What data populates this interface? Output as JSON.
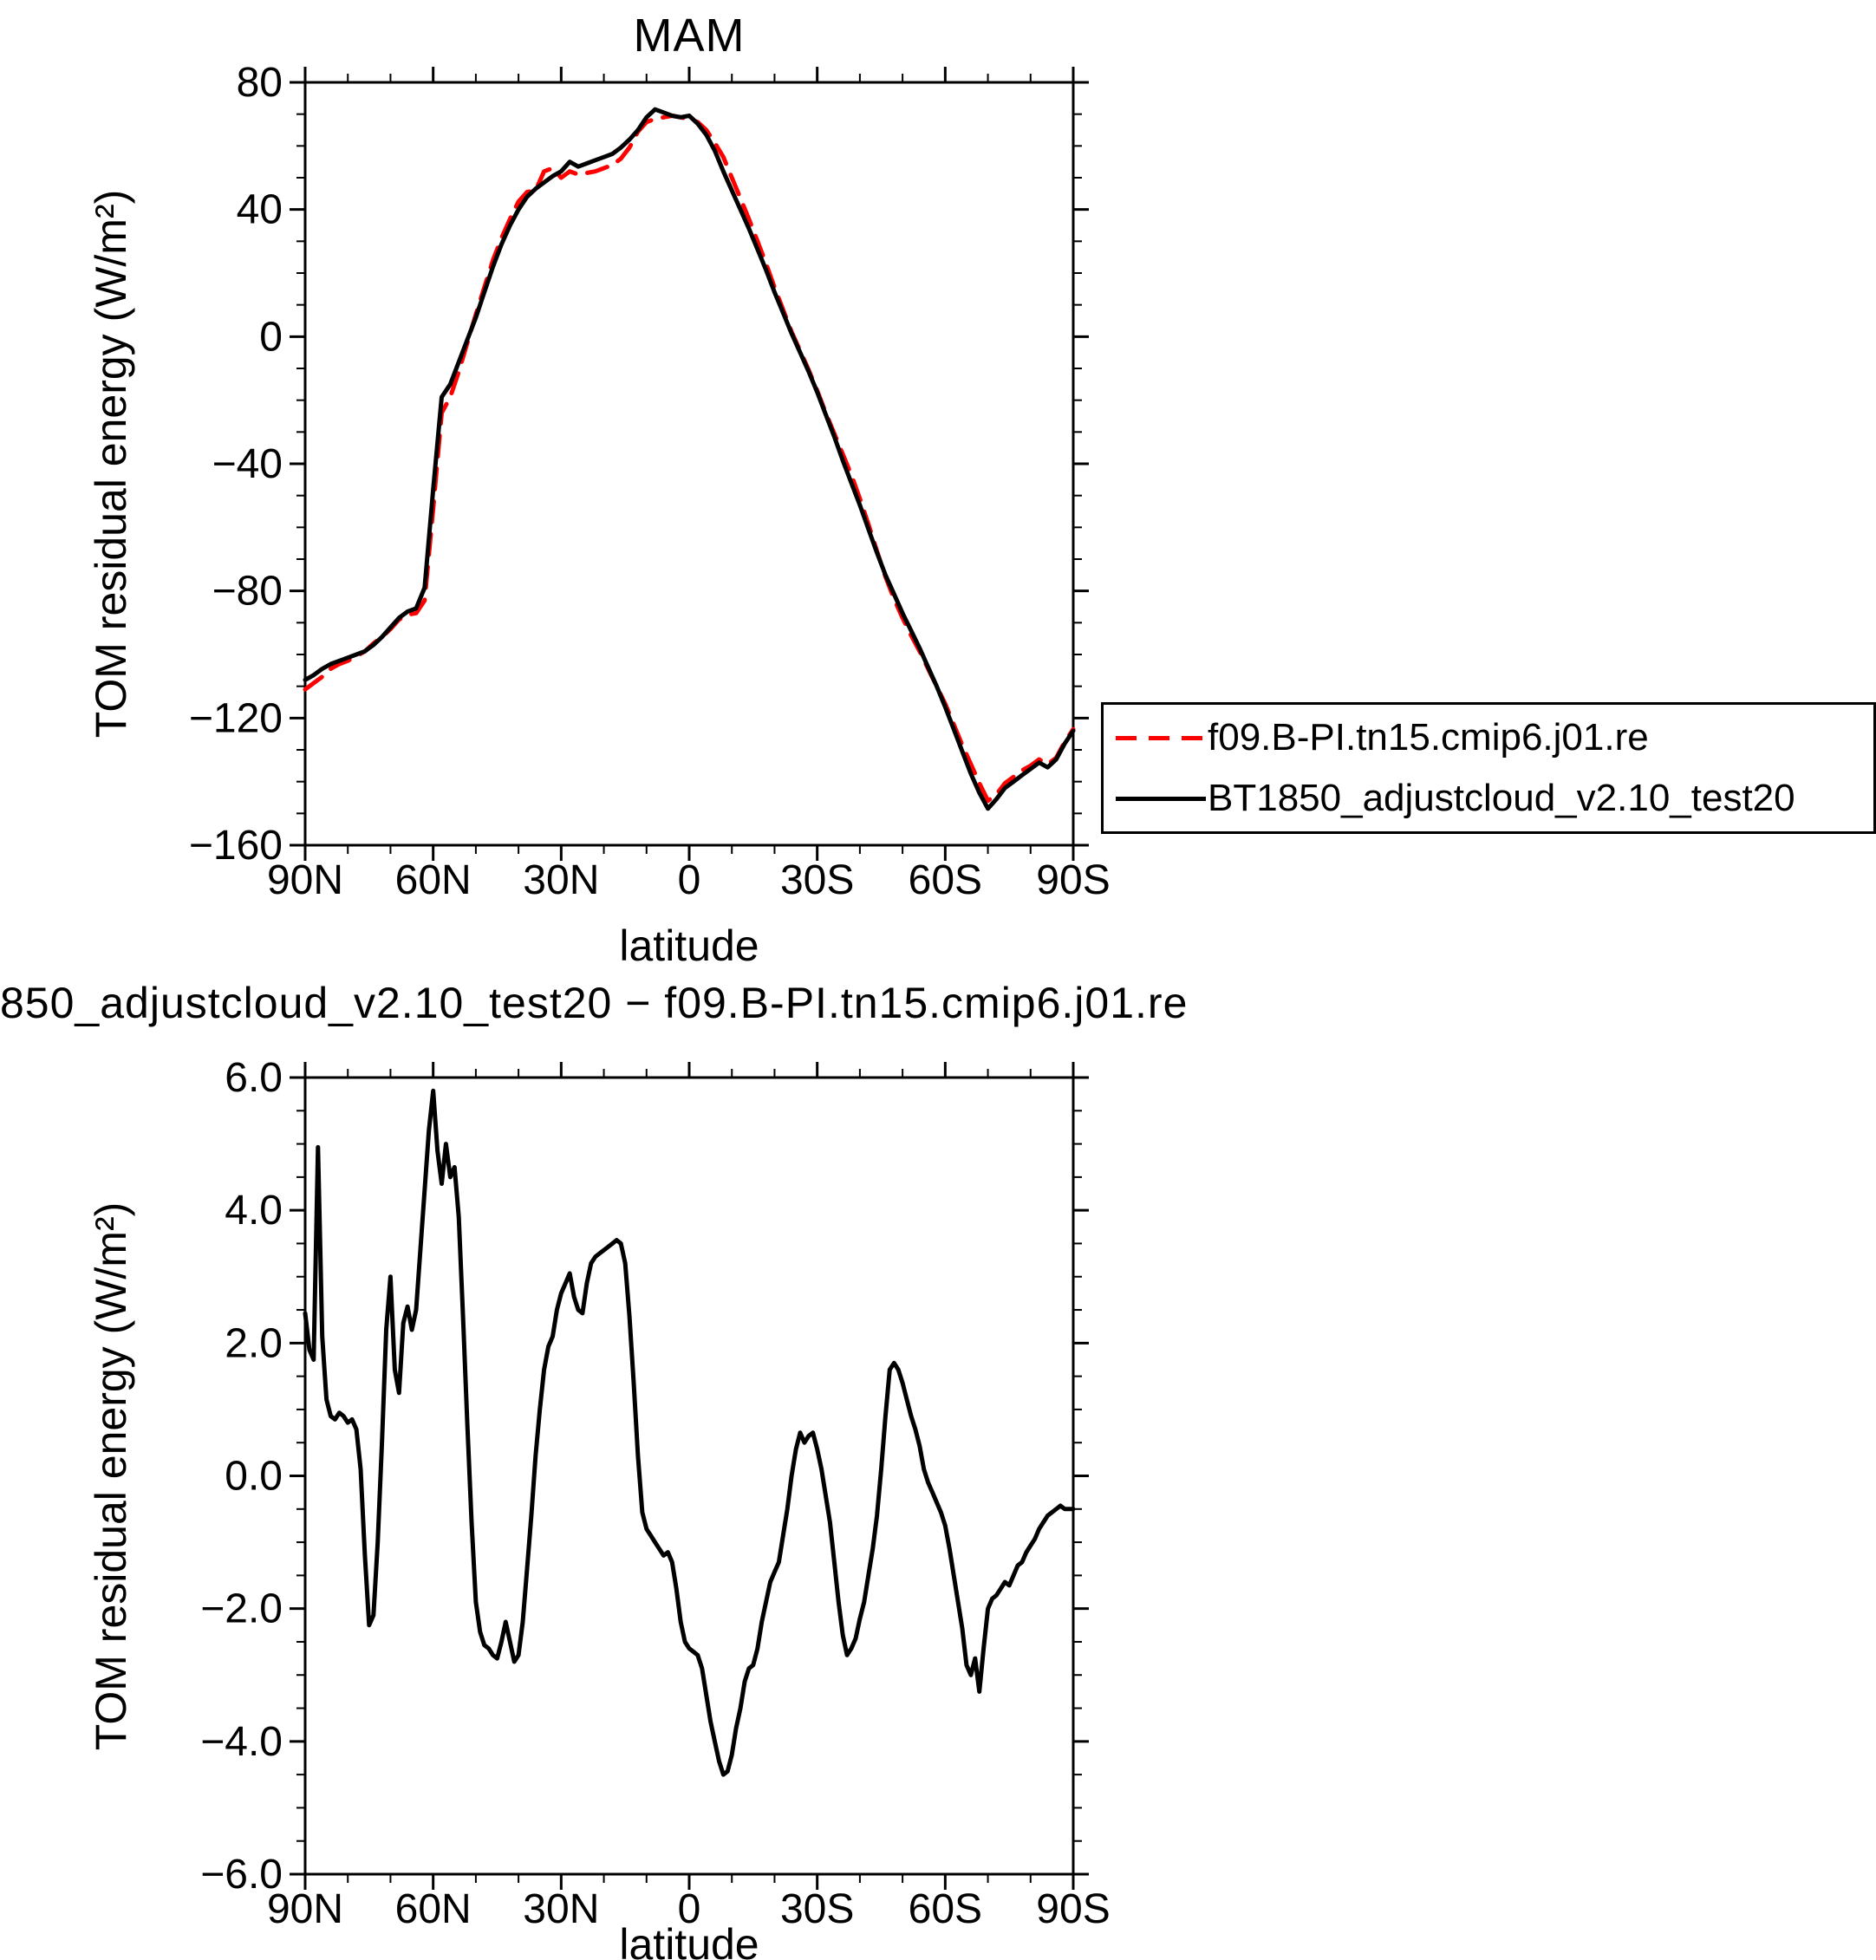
{
  "page": {
    "background": "#ffffff",
    "line_black": "#000000",
    "line_red": "#ff0000"
  },
  "chart_data": [
    {
      "id": "top-seasonal-mean",
      "type": "line",
      "title": "MAM",
      "xlabel": "latitude",
      "ylabel": "TOM residual energy (W/m²)",
      "xlim": [
        90,
        -90
      ],
      "ylim": [
        -160,
        80
      ],
      "xticks": [
        90,
        60,
        30,
        0,
        -30,
        -60,
        -90
      ],
      "xtick_labels": [
        "90N",
        "60N",
        "30N",
        "0",
        "30S",
        "60S",
        "90S"
      ],
      "yticks": [
        80,
        40,
        0,
        -40,
        -80,
        -120,
        -160
      ],
      "ytick_labels": [
        "80",
        "40",
        "0",
        "−40",
        "−80",
        "−120",
        "−160"
      ],
      "x_minor_step": 10,
      "y_minor_step": 10,
      "grid": false,
      "legend_position": "outside-right-lower",
      "x": [
        90,
        88,
        86,
        84,
        82,
        80,
        78,
        76,
        74,
        72,
        70,
        68,
        66,
        64,
        62,
        60,
        58,
        56,
        54,
        52,
        50,
        48,
        46,
        44,
        42,
        40,
        38,
        36,
        34,
        32,
        30,
        28,
        26,
        24,
        22,
        20,
        18,
        16,
        14,
        12,
        10,
        8,
        6,
        4,
        2,
        0,
        -2,
        -4,
        -6,
        -8,
        -10,
        -12,
        -14,
        -16,
        -18,
        -20,
        -22,
        -24,
        -26,
        -28,
        -30,
        -32,
        -34,
        -36,
        -38,
        -40,
        -42,
        -44,
        -46,
        -48,
        -50,
        -52,
        -54,
        -56,
        -58,
        -60,
        -62,
        -64,
        -66,
        -68,
        -70,
        -72,
        -74,
        -76,
        -78,
        -80,
        -82,
        -84,
        -86,
        -88,
        -90
      ],
      "series": [
        {
          "name": "f09.B-PI.tn15.cmip6.j01.re",
          "color": "#ff0000",
          "line_style": "dashed",
          "values": [
            -111,
            -109,
            -107,
            -104.5,
            -103,
            -102,
            -100.5,
            -99,
            -96.5,
            -94.5,
            -92,
            -89,
            -87.5,
            -87,
            -83,
            -54,
            -24,
            -19,
            -11,
            -2,
            7,
            15.5,
            24,
            31,
            37,
            42.5,
            45.5,
            46,
            52,
            53,
            50,
            52,
            51,
            51.5,
            52,
            53,
            54,
            56,
            59.5,
            64.5,
            67.5,
            68.5,
            69,
            69.5,
            69,
            68.5,
            67.5,
            65,
            61,
            56.5,
            50,
            43.5,
            37,
            30,
            23,
            15.5,
            8.5,
            1.5,
            -4.5,
            -10.5,
            -17,
            -24,
            -30.5,
            -37,
            -43.5,
            -51,
            -59,
            -67.5,
            -75.5,
            -82.5,
            -88.5,
            -94,
            -99,
            -104.5,
            -110,
            -115.5,
            -122,
            -128.5,
            -134.5,
            -140.5,
            -146,
            -144,
            -140.5,
            -138.5,
            -136.5,
            -135,
            -133,
            -134.5,
            -132.5,
            -127.5,
            -123.5
          ]
        },
        {
          "name": "BT1850_adjustcloud_v2.10_test20",
          "color": "#000000",
          "line_style": "solid",
          "values": [
            -108,
            -106.5,
            -104.5,
            -103,
            -102,
            -101,
            -100,
            -99,
            -97,
            -94.5,
            -91.5,
            -88.5,
            -86.5,
            -85.5,
            -79,
            -48,
            -19,
            -15,
            -8,
            -1,
            6,
            14,
            22,
            29,
            35,
            40,
            44,
            46.5,
            48.5,
            50.5,
            52,
            55,
            53.5,
            54.5,
            55.5,
            56.5,
            57.5,
            59.5,
            62,
            65,
            69,
            71.5,
            70.5,
            69.5,
            69,
            69.5,
            67,
            63.5,
            58.5,
            52,
            46,
            40,
            34,
            27.5,
            21,
            14,
            7.5,
            1,
            -5,
            -11,
            -17.5,
            -24.5,
            -31.5,
            -39,
            -46,
            -53,
            -60.5,
            -68,
            -75,
            -81,
            -87,
            -92.5,
            -98,
            -104,
            -110,
            -116.5,
            -123.5,
            -130.5,
            -137.5,
            -143.5,
            -148.5,
            -145.5,
            -142,
            -140,
            -138,
            -136,
            -134,
            -135.5,
            -133,
            -128,
            -124
          ]
        }
      ]
    },
    {
      "id": "bottom-difference",
      "type": "line",
      "title": "850_adjustcloud_v2.10_test20 − f09.B-PI.tn15.cmip6.j01.re",
      "xlabel": "latitude",
      "ylabel": "TOM residual energy (W/m²)",
      "xlim": [
        90,
        -90
      ],
      "ylim": [
        -6,
        6
      ],
      "xticks": [
        90,
        60,
        30,
        0,
        -30,
        -60,
        -90
      ],
      "xtick_labels": [
        "90N",
        "60N",
        "30N",
        "0",
        "30S",
        "60S",
        "90S"
      ],
      "yticks": [
        6,
        4,
        2,
        0,
        -2,
        -4,
        -6
      ],
      "ytick_labels": [
        "6.0",
        "4.0",
        "2.0",
        "0.0",
        "−2.0",
        "−4.0",
        "−6.0"
      ],
      "x_minor_step": 10,
      "y_minor_step": 0.5,
      "grid": false,
      "x": [
        90,
        89,
        88,
        87,
        86,
        85,
        84,
        83,
        82,
        81,
        80,
        79,
        78,
        77,
        76,
        75,
        74,
        73,
        72,
        71,
        70,
        69,
        68,
        67,
        66,
        65,
        64,
        63,
        62,
        61,
        60,
        59,
        58,
        57,
        56,
        55,
        54,
        53,
        52,
        51,
        50,
        49,
        48,
        47,
        46,
        45,
        44,
        43,
        42,
        41,
        40,
        39,
        38,
        37,
        36,
        35,
        34,
        33,
        32,
        31,
        30,
        29,
        28,
        27,
        26,
        25,
        24,
        23,
        22,
        21,
        20,
        19,
        18,
        17,
        16,
        15,
        14,
        13,
        12,
        11,
        10,
        9,
        8,
        7,
        6,
        5,
        4,
        3,
        2,
        1,
        0,
        -1,
        -2,
        -3,
        -4,
        -5,
        -6,
        -7,
        -8,
        -9,
        -10,
        -11,
        -12,
        -13,
        -14,
        -15,
        -16,
        -17,
        -18,
        -19,
        -20,
        -21,
        -22,
        -23,
        -24,
        -25,
        -26,
        -27,
        -28,
        -29,
        -30,
        -31,
        -32,
        -33,
        -34,
        -35,
        -36,
        -37,
        -38,
        -39,
        -40,
        -41,
        -42,
        -43,
        -44,
        -45,
        -46,
        -47,
        -48,
        -49,
        -50,
        -51,
        -52,
        -53,
        -54,
        -55,
        -56,
        -57,
        -58,
        -59,
        -60,
        -61,
        -62,
        -63,
        -64,
        -65,
        -66,
        -67,
        -68,
        -69,
        -70,
        -71,
        -72,
        -73,
        -74,
        -75,
        -76,
        -77,
        -78,
        -79,
        -80,
        -81,
        -82,
        -83,
        -84,
        -85,
        -86,
        -87,
        -88,
        -89,
        -90
      ],
      "series": [
        {
          "name": "850_adjustcloud_v2.10_test20 − f09.B-PI.tn15.cmip6.j01.re",
          "color": "#000000",
          "line_style": "solid",
          "values": [
            2.45,
            1.9,
            1.75,
            4.95,
            2.1,
            1.15,
            0.9,
            0.85,
            0.95,
            0.9,
            0.8,
            0.85,
            0.7,
            0.1,
            -1.2,
            -2.25,
            -2.1,
            -1.0,
            0.5,
            2.2,
            3.0,
            1.6,
            1.25,
            2.3,
            2.55,
            2.2,
            2.5,
            3.4,
            4.3,
            5.2,
            5.8,
            4.9,
            4.4,
            5.0,
            4.5,
            4.65,
            3.9,
            2.4,
            0.8,
            -0.7,
            -1.9,
            -2.35,
            -2.55,
            -2.6,
            -2.7,
            -2.75,
            -2.5,
            -2.2,
            -2.5,
            -2.8,
            -2.7,
            -2.2,
            -1.4,
            -0.6,
            0.3,
            1.0,
            1.6,
            1.95,
            2.1,
            2.5,
            2.75,
            2.9,
            3.05,
            2.7,
            2.5,
            2.45,
            2.9,
            3.2,
            3.3,
            3.35,
            3.4,
            3.45,
            3.5,
            3.55,
            3.5,
            3.2,
            2.4,
            1.4,
            0.3,
            -0.55,
            -0.8,
            -0.9,
            -1.0,
            -1.1,
            -1.2,
            -1.15,
            -1.3,
            -1.7,
            -2.2,
            -2.5,
            -2.6,
            -2.65,
            -2.7,
            -2.9,
            -3.3,
            -3.7,
            -4.0,
            -4.3,
            -4.5,
            -4.45,
            -4.2,
            -3.8,
            -3.5,
            -3.1,
            -2.9,
            -2.85,
            -2.6,
            -2.2,
            -1.9,
            -1.6,
            -1.45,
            -1.3,
            -0.9,
            -0.5,
            0.0,
            0.4,
            0.65,
            0.5,
            0.6,
            0.65,
            0.4,
            0.1,
            -0.3,
            -0.7,
            -1.3,
            -1.9,
            -2.4,
            -2.7,
            -2.6,
            -2.45,
            -2.15,
            -1.9,
            -1.5,
            -1.1,
            -0.6,
            0.1,
            0.9,
            1.6,
            1.7,
            1.6,
            1.4,
            1.15,
            0.9,
            0.7,
            0.45,
            0.1,
            -0.1,
            -0.25,
            -0.4,
            -0.55,
            -0.75,
            -1.1,
            -1.5,
            -1.9,
            -2.3,
            -2.85,
            -3.0,
            -2.75,
            -3.25,
            -2.6,
            -2.0,
            -1.85,
            -1.8,
            -1.7,
            -1.6,
            -1.65,
            -1.5,
            -1.35,
            -1.3,
            -1.15,
            -1.05,
            -0.95,
            -0.8,
            -0.7,
            -0.6,
            -0.55,
            -0.5,
            -0.45,
            -0.5,
            -0.5,
            -0.5
          ]
        }
      ]
    }
  ],
  "legend": {
    "entries": [
      {
        "label": "f09.B-PI.tn15.cmip6.j01.re",
        "style": "dashed-red"
      },
      {
        "label": "BT1850_adjustcloud_v2.10_test20",
        "style": "solid-black"
      }
    ]
  }
}
